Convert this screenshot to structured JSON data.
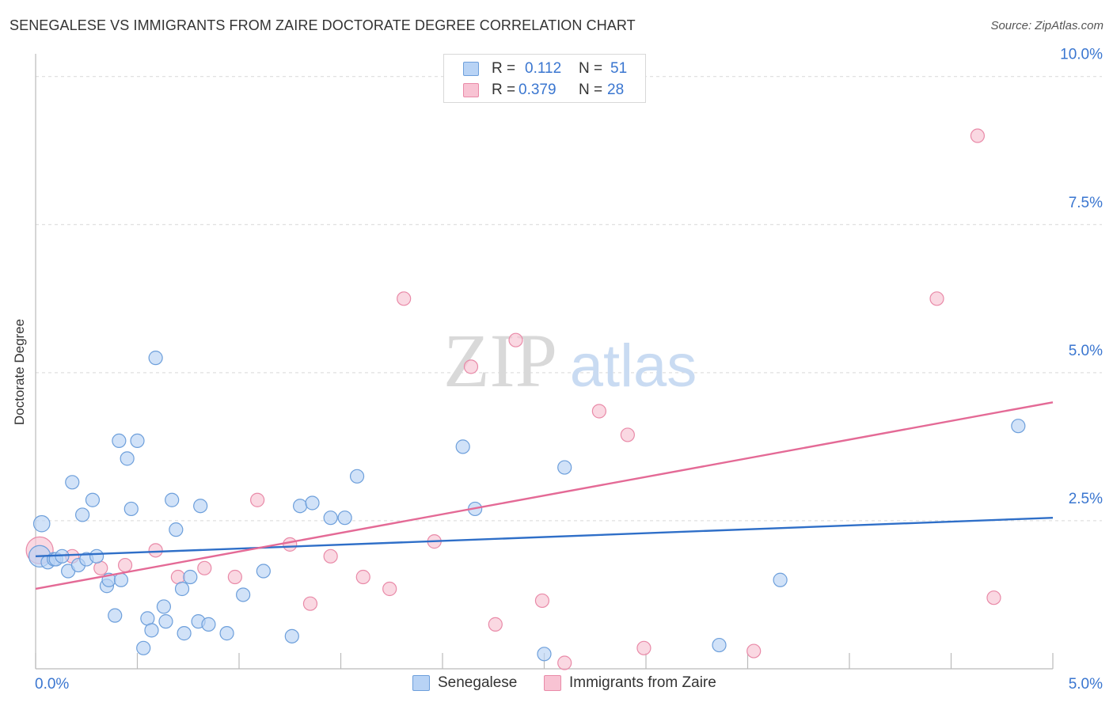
{
  "header": {
    "title": "SENEGALESE VS IMMIGRANTS FROM ZAIRE DOCTORATE DEGREE CORRELATION CHART",
    "source": "Source: ZipAtlas.com"
  },
  "watermark": {
    "zip": "ZIP",
    "atlas": "atlas"
  },
  "legend_stats": {
    "r_label": "R =",
    "n_label": "N =",
    "series": [
      {
        "r": "0.112",
        "n": "51"
      },
      {
        "r": "0.379",
        "n": "28"
      }
    ]
  },
  "colors": {
    "blue_fill": "#b8d3f5",
    "blue_stroke": "#6d9fdb",
    "blue_line": "#2f6fc8",
    "pink_fill": "#f8c3d3",
    "pink_stroke": "#e98aa8",
    "pink_line": "#e46a96",
    "value_text": "#3a76d0",
    "grid": "#d9d9d9"
  },
  "chart_data": {
    "type": "scatter",
    "title": "SENEGALESE VS IMMIGRANTS FROM ZAIRE DOCTORATE DEGREE CORRELATION CHART",
    "xlabel": "",
    "ylabel": "Doctorate Degree",
    "xlim": [
      0,
      5
    ],
    "ylim": [
      0,
      10.25
    ],
    "x_tick_labels": [
      "0.0%",
      "5.0%"
    ],
    "y_ticks": [
      2.5,
      5.0,
      7.5,
      10.0
    ],
    "y_tick_labels": [
      "2.5%",
      "5.0%",
      "7.5%",
      "10.0%"
    ],
    "grid": "horizontal dashed",
    "legend_position": "bottom-center",
    "series": [
      {
        "name": "Senegalese",
        "r": 0.112,
        "n": 51,
        "trend": {
          "x": [
            0,
            5
          ],
          "y": [
            1.9,
            2.55
          ]
        },
        "points": [
          {
            "x": 0.03,
            "y": 2.45,
            "s": 1.2
          },
          {
            "x": 0.02,
            "y": 1.9,
            "s": 1.6
          },
          {
            "x": 0.06,
            "y": 1.8
          },
          {
            "x": 0.09,
            "y": 1.85
          },
          {
            "x": 0.1,
            "y": 1.85
          },
          {
            "x": 0.13,
            "y": 1.9
          },
          {
            "x": 0.16,
            "y": 1.65
          },
          {
            "x": 0.21,
            "y": 1.75
          },
          {
            "x": 0.25,
            "y": 1.85
          },
          {
            "x": 0.3,
            "y": 1.9
          },
          {
            "x": 0.35,
            "y": 1.4
          },
          {
            "x": 0.36,
            "y": 1.5
          },
          {
            "x": 0.42,
            "y": 1.5
          },
          {
            "x": 0.39,
            "y": 0.9
          },
          {
            "x": 0.18,
            "y": 3.15
          },
          {
            "x": 0.23,
            "y": 2.6
          },
          {
            "x": 0.28,
            "y": 2.85
          },
          {
            "x": 0.41,
            "y": 3.85
          },
          {
            "x": 0.5,
            "y": 3.85
          },
          {
            "x": 0.45,
            "y": 3.55
          },
          {
            "x": 0.47,
            "y": 2.7
          },
          {
            "x": 0.59,
            "y": 5.25
          },
          {
            "x": 0.67,
            "y": 2.85
          },
          {
            "x": 0.69,
            "y": 2.35
          },
          {
            "x": 0.72,
            "y": 1.35
          },
          {
            "x": 0.76,
            "y": 1.55
          },
          {
            "x": 0.81,
            "y": 2.75
          },
          {
            "x": 0.53,
            "y": 0.35
          },
          {
            "x": 0.55,
            "y": 0.85
          },
          {
            "x": 0.57,
            "y": 0.65
          },
          {
            "x": 0.63,
            "y": 1.05
          },
          {
            "x": 0.64,
            "y": 0.8
          },
          {
            "x": 0.73,
            "y": 0.6
          },
          {
            "x": 0.8,
            "y": 0.8
          },
          {
            "x": 0.85,
            "y": 0.75
          },
          {
            "x": 0.94,
            "y": 0.6
          },
          {
            "x": 1.02,
            "y": 1.25
          },
          {
            "x": 1.12,
            "y": 1.65
          },
          {
            "x": 1.26,
            "y": 0.55
          },
          {
            "x": 1.3,
            "y": 2.75
          },
          {
            "x": 1.36,
            "y": 2.8
          },
          {
            "x": 1.45,
            "y": 2.55
          },
          {
            "x": 1.52,
            "y": 2.55
          },
          {
            "x": 1.58,
            "y": 3.25
          },
          {
            "x": 2.1,
            "y": 3.75
          },
          {
            "x": 2.16,
            "y": 2.7
          },
          {
            "x": 2.5,
            "y": 0.25
          },
          {
            "x": 2.6,
            "y": 3.4
          },
          {
            "x": 3.36,
            "y": 0.4
          },
          {
            "x": 3.66,
            "y": 1.5
          },
          {
            "x": 4.83,
            "y": 4.1
          }
        ]
      },
      {
        "name": "Immigrants from Zaire",
        "r": 0.379,
        "n": 28,
        "trend": {
          "x": [
            0,
            5
          ],
          "y": [
            1.35,
            4.5
          ]
        },
        "points": [
          {
            "x": 0.02,
            "y": 2.0,
            "s": 2.0
          },
          {
            "x": 0.18,
            "y": 1.9
          },
          {
            "x": 0.32,
            "y": 1.7
          },
          {
            "x": 0.44,
            "y": 1.75
          },
          {
            "x": 0.59,
            "y": 2.0
          },
          {
            "x": 0.7,
            "y": 1.55
          },
          {
            "x": 0.83,
            "y": 1.7
          },
          {
            "x": 0.98,
            "y": 1.55
          },
          {
            "x": 1.09,
            "y": 2.85
          },
          {
            "x": 1.25,
            "y": 2.1
          },
          {
            "x": 1.35,
            "y": 1.1
          },
          {
            "x": 1.45,
            "y": 1.9
          },
          {
            "x": 1.61,
            "y": 1.55
          },
          {
            "x": 1.74,
            "y": 1.35
          },
          {
            "x": 1.81,
            "y": 6.25
          },
          {
            "x": 1.96,
            "y": 2.15
          },
          {
            "x": 2.14,
            "y": 5.1
          },
          {
            "x": 2.26,
            "y": 0.75
          },
          {
            "x": 2.36,
            "y": 5.55
          },
          {
            "x": 2.49,
            "y": 1.15
          },
          {
            "x": 2.6,
            "y": 0.1
          },
          {
            "x": 2.77,
            "y": 4.35
          },
          {
            "x": 2.91,
            "y": 3.95
          },
          {
            "x": 2.99,
            "y": 0.35
          },
          {
            "x": 3.53,
            "y": 0.3
          },
          {
            "x": 4.43,
            "y": 6.25
          },
          {
            "x": 4.63,
            "y": 9.0
          },
          {
            "x": 4.71,
            "y": 1.2
          }
        ]
      }
    ]
  }
}
